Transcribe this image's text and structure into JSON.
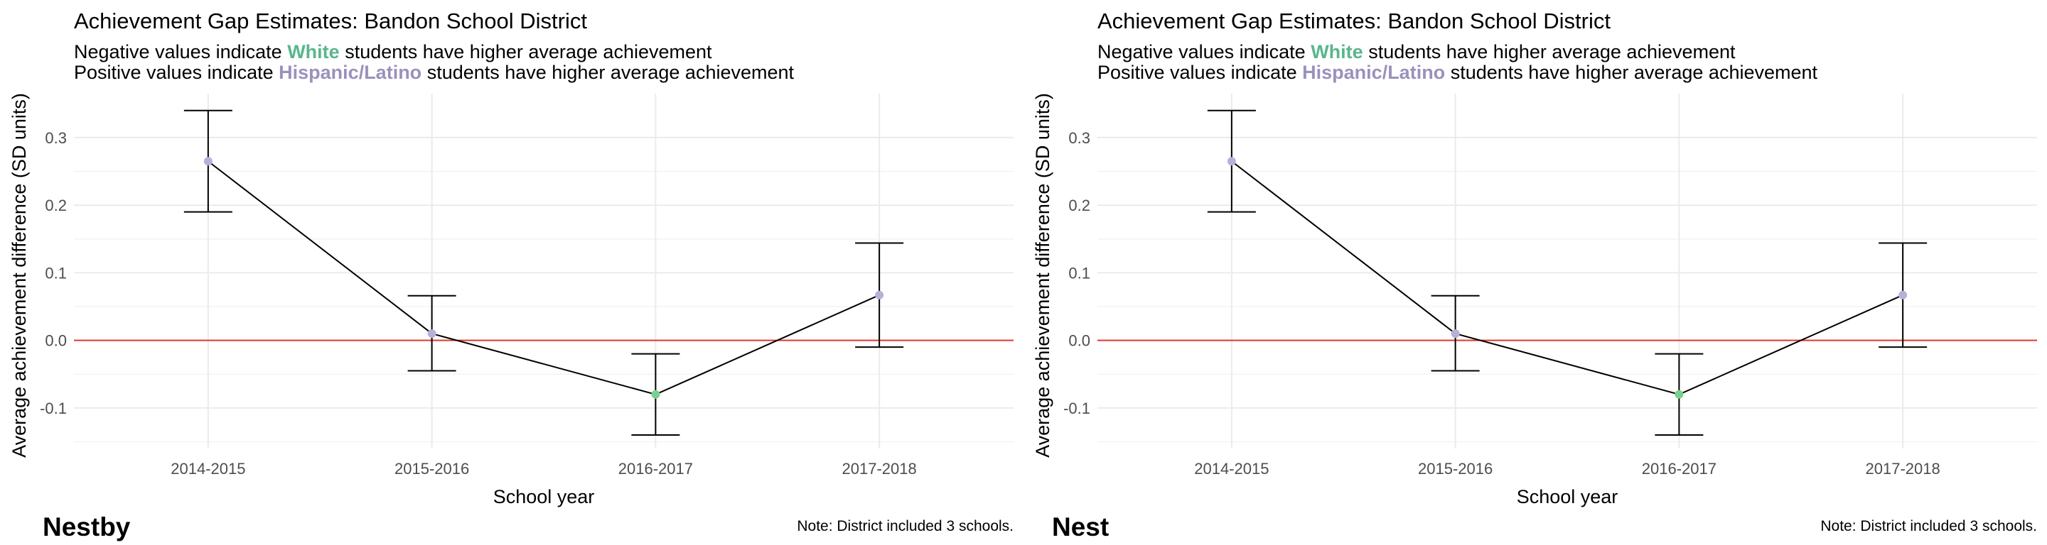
{
  "colors": {
    "white_highlight": "#5ab68c",
    "hispanic_highlight": "#9b91bb",
    "point_positive": "#b7b0d8",
    "point_negative": "#7bd08e",
    "zero_line": "#e03a2f",
    "grid": "#ebebeb"
  },
  "panels": [
    {
      "title": "Achievement Gap Estimates: Bandon School District",
      "subtitle_1_pre": "Negative values indicate ",
      "subtitle_1_group": "White",
      "subtitle_1_post": " students have higher average achievement",
      "subtitle_2_pre": "Positive values indicate ",
      "subtitle_2_group": "Hispanic/Latino",
      "subtitle_2_post": " students have higher average achievement",
      "tag": "Nestby",
      "caption": "Note: District included 3 schools."
    },
    {
      "title": "Achievement Gap Estimates: Bandon School District",
      "subtitle_1_pre": "Negative values indicate ",
      "subtitle_1_group": "White",
      "subtitle_1_post": " students have higher average achievement",
      "subtitle_2_pre": "Positive values indicate ",
      "subtitle_2_group": "Hispanic/Latino",
      "subtitle_2_post": " students have higher average achievement",
      "tag": "Nest",
      "caption": "Note: District included 3 schools."
    }
  ],
  "chart_data": [
    {
      "type": "line",
      "xlabel": "School year",
      "ylabel": "Average achievement difference (SD units)",
      "categories": [
        "2014-2015",
        "2015-2016",
        "2016-2017",
        "2017-2018"
      ],
      "values": [
        0.265,
        0.01,
        -0.08,
        0.067
      ],
      "ci_lower": [
        0.19,
        -0.045,
        -0.14,
        -0.01
      ],
      "ci_upper": [
        0.34,
        0.066,
        -0.02,
        0.144
      ],
      "yticks": [
        -0.1,
        0.0,
        0.1,
        0.2,
        0.3
      ],
      "ytick_labels": [
        "-0.1",
        "0.0",
        "0.1",
        "0.2",
        "0.3"
      ],
      "ylim": [
        -0.16,
        0.365
      ],
      "reference_line": 0,
      "grid": true
    },
    {
      "type": "line",
      "xlabel": "School year",
      "ylabel": "Average achievement difference (SD units)",
      "categories": [
        "2014-2015",
        "2015-2016",
        "2016-2017",
        "2017-2018"
      ],
      "values": [
        0.265,
        0.01,
        -0.08,
        0.067
      ],
      "ci_lower": [
        0.19,
        -0.045,
        -0.14,
        -0.01
      ],
      "ci_upper": [
        0.34,
        0.066,
        -0.02,
        0.144
      ],
      "yticks": [
        -0.1,
        0.0,
        0.1,
        0.2,
        0.3
      ],
      "ytick_labels": [
        "-0.1",
        "0.0",
        "0.1",
        "0.2",
        "0.3"
      ],
      "ylim": [
        -0.16,
        0.365
      ],
      "reference_line": 0,
      "grid": true
    }
  ]
}
